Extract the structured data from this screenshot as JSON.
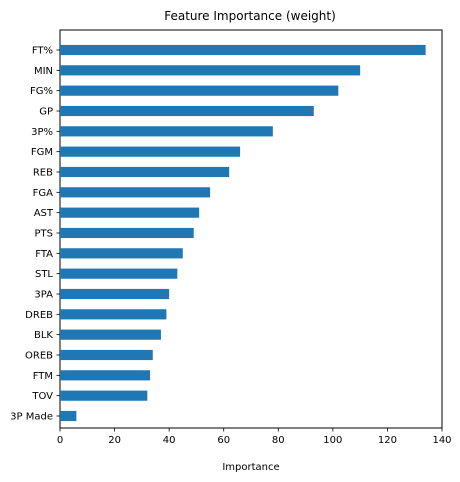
{
  "chart_data": {
    "type": "bar",
    "orientation": "horizontal",
    "title": "Feature Importance (weight)",
    "xlabel": "Importance",
    "ylabel": "",
    "xlim": [
      0,
      140
    ],
    "xticks": [
      0,
      20,
      40,
      60,
      80,
      100,
      120,
      140
    ],
    "grid": false,
    "bar_color": "#1f77b4",
    "categories": [
      "FT%",
      "MIN",
      "FG%",
      "GP",
      "3P%",
      "FGM",
      "REB",
      "FGA",
      "AST",
      "PTS",
      "FTA",
      "STL",
      "3PA",
      "DREB",
      "BLK",
      "OREB",
      "FTM",
      "TOV",
      "3P Made"
    ],
    "values": [
      134,
      110,
      102,
      93,
      78,
      66,
      62,
      55,
      51,
      49,
      45,
      43,
      40,
      39,
      37,
      34,
      33,
      32,
      6
    ]
  }
}
